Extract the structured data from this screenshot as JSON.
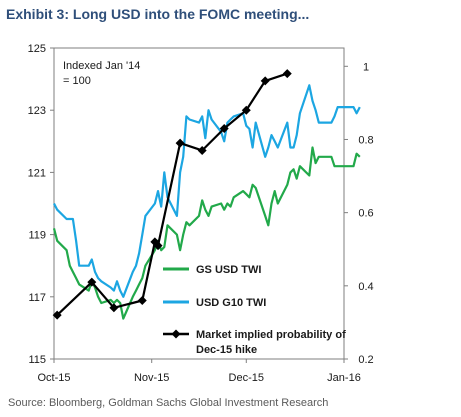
{
  "header": {
    "title": "Exhibit 3: Long USD into the FOMC meeting..."
  },
  "footer": {
    "source": "Source: Bloomberg, Goldman Sachs Global Investment Research"
  },
  "chart_data": {
    "type": "line",
    "annotation": [
      "Indexed  Jan '14",
      "= 100"
    ],
    "x_ticks": [
      "Oct-15",
      "Nov-15",
      "Dec-15",
      "Jan-16"
    ],
    "x_range": [
      "2015-10-01",
      "2016-01-01"
    ],
    "y_left": {
      "ticks": [
        115,
        117,
        119,
        121,
        123,
        125
      ],
      "range": [
        115,
        125
      ]
    },
    "y_right": {
      "ticks": [
        "0.2",
        "0.4",
        "0.6",
        "0.8",
        "1"
      ],
      "range": [
        0.2,
        1.05
      ]
    },
    "grid": false,
    "series": [
      {
        "name": "GS USD TWI",
        "axis": "left",
        "color": "#22a94a",
        "marker": false,
        "points": [
          [
            "2015-10-01",
            119.2
          ],
          [
            "2015-10-02",
            118.8
          ],
          [
            "2015-10-05",
            118.5
          ],
          [
            "2015-10-06",
            118.0
          ],
          [
            "2015-10-07",
            117.8
          ],
          [
            "2015-10-08",
            117.6
          ],
          [
            "2015-10-09",
            117.4
          ],
          [
            "2015-10-12",
            117.2
          ],
          [
            "2015-10-13",
            117.5
          ],
          [
            "2015-10-14",
            117.3
          ],
          [
            "2015-10-15",
            117.0
          ],
          [
            "2015-10-16",
            116.8
          ],
          [
            "2015-10-19",
            116.9
          ],
          [
            "2015-10-20",
            116.8
          ],
          [
            "2015-10-21",
            116.9
          ],
          [
            "2015-10-22",
            116.8
          ],
          [
            "2015-10-23",
            116.3
          ],
          [
            "2015-10-26",
            117.0
          ],
          [
            "2015-10-27",
            117.2
          ],
          [
            "2015-10-28",
            117.4
          ],
          [
            "2015-10-29",
            117.6
          ],
          [
            "2015-10-30",
            118.0
          ],
          [
            "2015-11-02",
            118.5
          ],
          [
            "2015-11-03",
            118.8
          ],
          [
            "2015-11-04",
            118.5
          ],
          [
            "2015-11-05",
            118.6
          ],
          [
            "2015-11-06",
            119.3
          ],
          [
            "2015-11-09",
            119.0
          ],
          [
            "2015-11-10",
            118.5
          ],
          [
            "2015-11-11",
            119.0
          ],
          [
            "2015-11-12",
            119.4
          ],
          [
            "2015-11-13",
            119.3
          ],
          [
            "2015-11-16",
            119.6
          ],
          [
            "2015-11-17",
            120.1
          ],
          [
            "2015-11-18",
            119.8
          ],
          [
            "2015-11-19",
            119.6
          ],
          [
            "2015-11-20",
            119.9
          ],
          [
            "2015-11-23",
            120.0
          ],
          [
            "2015-11-24",
            119.8
          ],
          [
            "2015-11-25",
            120.0
          ],
          [
            "2015-11-26",
            119.9
          ],
          [
            "2015-11-27",
            120.2
          ],
          [
            "2015-11-30",
            120.4
          ],
          [
            "2015-12-01",
            120.3
          ],
          [
            "2015-12-02",
            120.2
          ],
          [
            "2015-12-03",
            120.6
          ],
          [
            "2015-12-04",
            120.5
          ],
          [
            "2015-12-07",
            119.6
          ],
          [
            "2015-12-08",
            119.3
          ],
          [
            "2015-12-09",
            120.0
          ],
          [
            "2015-12-10",
            120.4
          ],
          [
            "2015-12-11",
            120.0
          ],
          [
            "2015-12-14",
            120.6
          ],
          [
            "2015-12-15",
            121.0
          ],
          [
            "2015-12-16",
            121.1
          ],
          [
            "2015-12-17",
            120.8
          ],
          [
            "2015-12-18",
            121.2
          ],
          [
            "2015-12-21",
            120.9
          ],
          [
            "2015-12-22",
            121.8
          ],
          [
            "2015-12-23",
            121.3
          ],
          [
            "2015-12-24",
            121.5
          ],
          [
            "2015-12-28",
            121.5
          ],
          [
            "2015-12-29",
            121.2
          ],
          [
            "2015-12-30",
            121.2
          ],
          [
            "2016-01-04",
            121.2
          ],
          [
            "2016-01-05",
            121.6
          ],
          [
            "2016-01-06",
            121.5
          ]
        ]
      },
      {
        "name": "USD G10 TWI",
        "axis": "left",
        "color": "#1ca6e2",
        "marker": false,
        "points": [
          [
            "2015-10-01",
            120.0
          ],
          [
            "2015-10-02",
            119.8
          ],
          [
            "2015-10-05",
            119.5
          ],
          [
            "2015-10-06",
            119.5
          ],
          [
            "2015-10-07",
            119.5
          ],
          [
            "2015-10-08",
            118.8
          ],
          [
            "2015-10-09",
            118.0
          ],
          [
            "2015-10-12",
            118.0
          ],
          [
            "2015-10-13",
            118.2
          ],
          [
            "2015-10-14",
            117.8
          ],
          [
            "2015-10-15",
            117.6
          ],
          [
            "2015-10-16",
            117.5
          ],
          [
            "2015-10-19",
            117.3
          ],
          [
            "2015-10-20",
            117.2
          ],
          [
            "2015-10-21",
            117.5
          ],
          [
            "2015-10-22",
            117.2
          ],
          [
            "2015-10-23",
            117.0
          ],
          [
            "2015-10-26",
            117.8
          ],
          [
            "2015-10-27",
            118.0
          ],
          [
            "2015-10-28",
            118.4
          ],
          [
            "2015-10-29",
            119.0
          ],
          [
            "2015-10-30",
            119.6
          ],
          [
            "2015-11-02",
            120.0
          ],
          [
            "2015-11-03",
            120.4
          ],
          [
            "2015-11-04",
            119.9
          ],
          [
            "2015-11-05",
            121.0
          ],
          [
            "2015-11-06",
            120.2
          ],
          [
            "2015-11-09",
            119.6
          ],
          [
            "2015-11-10",
            121.0
          ],
          [
            "2015-11-11",
            121.5
          ],
          [
            "2015-11-12",
            122.8
          ],
          [
            "2015-11-13",
            122.7
          ],
          [
            "2015-11-16",
            122.6
          ],
          [
            "2015-11-17",
            122.8
          ],
          [
            "2015-11-18",
            122.1
          ],
          [
            "2015-11-19",
            123.0
          ],
          [
            "2015-11-20",
            122.7
          ],
          [
            "2015-11-23",
            122.3
          ],
          [
            "2015-11-24",
            122.0
          ],
          [
            "2015-11-25",
            122.6
          ],
          [
            "2015-11-26",
            122.7
          ],
          [
            "2015-11-27",
            122.8
          ],
          [
            "2015-11-30",
            122.9
          ],
          [
            "2015-12-01",
            122.5
          ],
          [
            "2015-12-02",
            122.4
          ],
          [
            "2015-12-03",
            121.8
          ],
          [
            "2015-12-04",
            122.6
          ],
          [
            "2015-12-07",
            121.5
          ],
          [
            "2015-12-08",
            121.8
          ],
          [
            "2015-12-09",
            122.2
          ],
          [
            "2015-12-10",
            122.0
          ],
          [
            "2015-12-11",
            121.8
          ],
          [
            "2015-12-14",
            122.6
          ],
          [
            "2015-12-15",
            121.8
          ],
          [
            "2015-12-16",
            121.8
          ],
          [
            "2015-12-17",
            122.2
          ],
          [
            "2015-12-18",
            122.9
          ],
          [
            "2015-12-21",
            123.8
          ],
          [
            "2015-12-22",
            123.3
          ],
          [
            "2015-12-23",
            123.0
          ],
          [
            "2015-12-24",
            122.6
          ],
          [
            "2015-12-28",
            122.6
          ],
          [
            "2015-12-29",
            122.8
          ],
          [
            "2015-12-30",
            123.1
          ],
          [
            "2016-01-04",
            123.1
          ],
          [
            "2016-01-05",
            122.9
          ],
          [
            "2016-01-06",
            123.1
          ]
        ]
      },
      {
        "name": "Market implied probability of Dec-15 hike",
        "axis": "right",
        "color": "#000000",
        "marker": true,
        "points": [
          [
            "2015-10-02",
            0.32
          ],
          [
            "2015-10-13",
            0.41
          ],
          [
            "2015-10-20",
            0.34
          ],
          [
            "2015-10-29",
            0.36
          ],
          [
            "2015-11-02",
            0.52
          ],
          [
            "2015-11-03",
            0.51
          ],
          [
            "2015-11-10",
            0.79
          ],
          [
            "2015-11-17",
            0.77
          ],
          [
            "2015-11-24",
            0.83
          ],
          [
            "2015-12-01",
            0.88
          ],
          [
            "2015-12-07",
            0.96
          ],
          [
            "2015-12-14",
            0.98
          ]
        ]
      }
    ],
    "legend": [
      {
        "label": "GS USD TWI"
      },
      {
        "label": "USD G10 TWI"
      },
      {
        "label_lines": [
          "Market implied probability of",
          "Dec-15 hike"
        ]
      }
    ]
  }
}
